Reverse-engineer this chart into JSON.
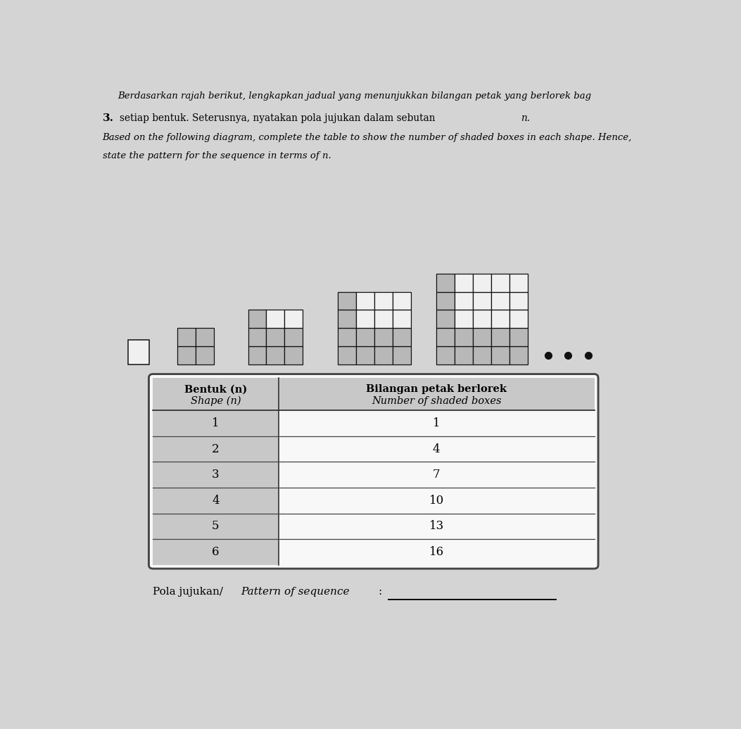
{
  "page_bg": "#d4d4d4",
  "title_line1_italic": "Berdasarkan rajah berikut, lengkapkan jadual yang menunjukkan bilangan petak yang berlorek bag",
  "title_line2": "setiap bentuk. Seterusnya, nyatakan pola jujukan dalam sebutan ",
  "title_line2_n": "n.",
  "title_line3_italic": "Based on the following diagram, complete the table to show the number of shaded boxes in each shape. Hence,",
  "title_line4_italic": "state the pattern for the sequence in terms of n.",
  "bullet": "3.",
  "table_header_col1_line1": "Bentuk (",
  "table_header_col1_n": "n",
  "table_header_col1_line1_end": ")",
  "table_header_col1_line2": "Shape (",
  "table_header_col1_n2": "n",
  "table_header_col1_line2_end": ")",
  "table_header_col2_line1": "Bilangan petak berlorek",
  "table_header_col2_line2": "Number of shaded boxes",
  "table_rows": [
    [
      1,
      1
    ],
    [
      2,
      4
    ],
    [
      3,
      7
    ],
    [
      4,
      10
    ],
    [
      5,
      13
    ],
    [
      6,
      16
    ]
  ],
  "pattern_label_normal": "Pola jujukan/",
  "pattern_label_italic": "Pattern of sequence",
  "pattern_label_end": ": ",
  "shaded_color": "#b8b8b8",
  "unshaded_color": "#f0f0f0",
  "grid_line_color": "#111111",
  "table_header_bg": "#c8c8c8",
  "table_bg": "#f8f8f8",
  "dot_color": "#111111",
  "shapes_n": [
    1,
    2,
    3,
    4,
    5
  ]
}
